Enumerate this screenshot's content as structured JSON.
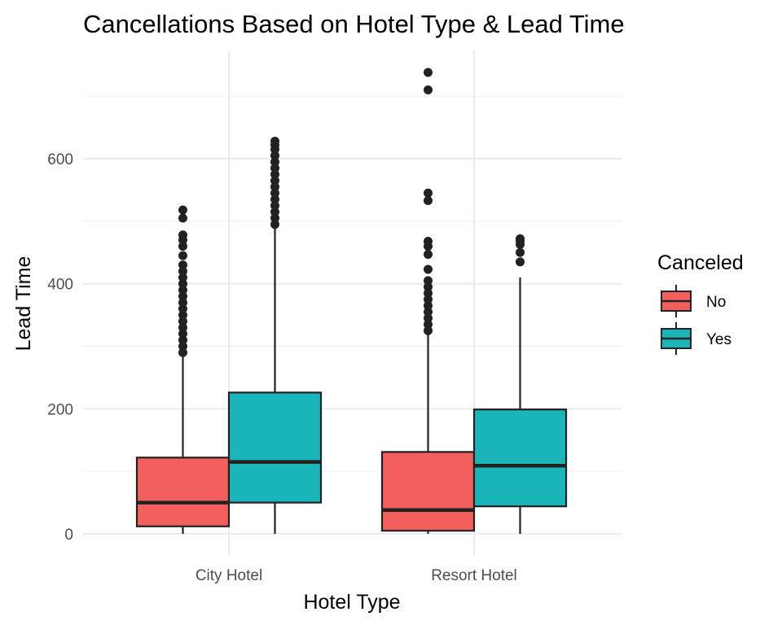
{
  "chart_data": {
    "type": "boxplot",
    "title": "Cancellations Based on Hotel Type & Lead Time",
    "xlabel": "Hotel Type",
    "ylabel": "Lead Time",
    "categories": [
      "City Hotel",
      "Resort Hotel"
    ],
    "ylim": [
      -30,
      770
    ],
    "yticks": [
      0,
      200,
      400,
      600
    ],
    "grid": true,
    "legend": {
      "title": "Canceled",
      "position": "right"
    },
    "series": [
      {
        "name": "No",
        "color": "#F25F5C",
        "boxes": [
          {
            "category": "City Hotel",
            "min": 0,
            "q1": 12,
            "median": 50,
            "q3": 122,
            "max": 285,
            "outliers": [
              290,
              300,
              310,
              320,
              330,
              340,
              350,
              360,
              370,
              380,
              390,
              400,
              410,
              420,
              430,
              445,
              460,
              470,
              478,
              505,
              518
            ]
          },
          {
            "category": "Resort Hotel",
            "min": 0,
            "q1": 5,
            "median": 38,
            "q3": 131,
            "max": 320,
            "outliers": [
              325,
              335,
              345,
              355,
              365,
              375,
              385,
              395,
              405,
              423,
              447,
              460,
              468,
              533,
              545,
              710,
              738
            ]
          }
        ]
      },
      {
        "name": "Yes",
        "color": "#1AB5B8",
        "boxes": [
          {
            "category": "City Hotel",
            "min": 0,
            "q1": 50,
            "median": 115,
            "q3": 226,
            "max": 490,
            "outliers": [
              495,
              505,
              515,
              525,
              535,
              545,
              555,
              565,
              575,
              585,
              595,
              605,
              615,
              622,
              628
            ]
          },
          {
            "category": "Resort Hotel",
            "min": 0,
            "q1": 44,
            "median": 109,
            "q3": 199,
            "max": 410,
            "outliers": [
              435,
              450,
              463,
              468,
              472
            ]
          }
        ]
      }
    ]
  }
}
